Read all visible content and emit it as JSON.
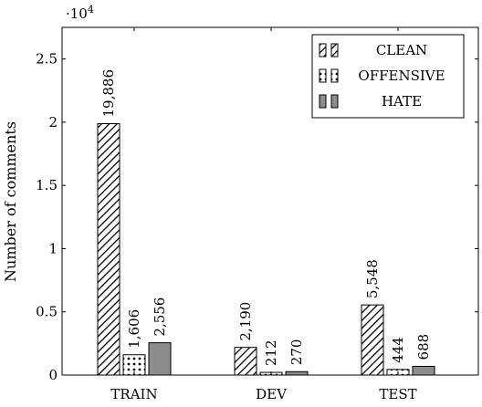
{
  "chart_data": {
    "type": "bar",
    "categories": [
      "TRAIN",
      "DEV",
      "TEST"
    ],
    "series": [
      {
        "name": "CLEAN",
        "values": [
          19886,
          2190,
          5548
        ],
        "labels": [
          "19,886",
          "2,190",
          "5,548"
        ],
        "pattern": "diagonal-hatch"
      },
      {
        "name": "OFFENSIVE",
        "values": [
          1606,
          212,
          444
        ],
        "labels": [
          "1,606",
          "212",
          "444"
        ],
        "pattern": "dots"
      },
      {
        "name": "HATE",
        "values": [
          2556,
          270,
          688
        ],
        "labels": [
          "2,556",
          "270",
          "688"
        ],
        "pattern": "solid-gray"
      }
    ],
    "ylabel": "Number of comments",
    "y_scale_label": "·10",
    "y_scale_exponent": "4",
    "yticks": [
      0,
      0.5,
      1,
      1.5,
      2,
      2.5
    ],
    "ytick_labels": [
      "0",
      "0.5",
      "1",
      "1.5",
      "2",
      "2.5"
    ],
    "ylim": [
      0,
      27500
    ],
    "legend_position": "top-right",
    "grid": false,
    "colors": {
      "hate_fill": "#8c8c8c",
      "stroke": "#000000",
      "background": "#ffffff"
    }
  }
}
